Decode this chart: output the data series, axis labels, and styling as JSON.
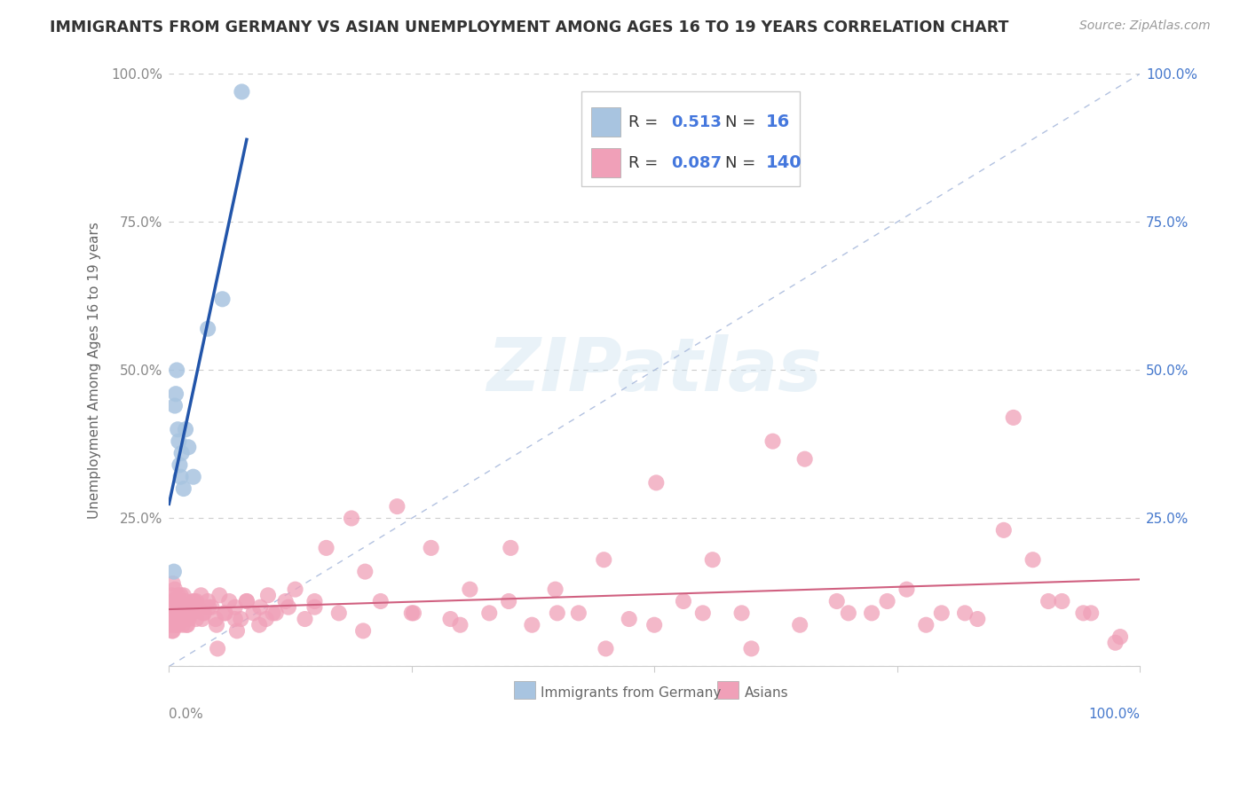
{
  "title": "IMMIGRANTS FROM GERMANY VS ASIAN UNEMPLOYMENT AMONG AGES 16 TO 19 YEARS CORRELATION CHART",
  "source": "Source: ZipAtlas.com",
  "ylabel": "Unemployment Among Ages 16 to 19 years",
  "blue_R": 0.513,
  "blue_N": 16,
  "pink_R": 0.087,
  "pink_N": 140,
  "blue_color": "#a8c4e0",
  "blue_line_color": "#2255aa",
  "pink_color": "#f0a0b8",
  "pink_line_color": "#d06080",
  "diag_color": "#aabbdd",
  "legend_label_blue": "Immigrants from Germany",
  "legend_label_pink": "Asians",
  "watermark": "ZIPatlas",
  "blue_scatter_x": [
    0.005,
    0.006,
    0.007,
    0.008,
    0.009,
    0.01,
    0.011,
    0.012,
    0.013,
    0.015,
    0.017,
    0.02,
    0.025,
    0.04,
    0.055,
    0.075
  ],
  "blue_scatter_y": [
    0.16,
    0.44,
    0.46,
    0.5,
    0.4,
    0.38,
    0.34,
    0.32,
    0.36,
    0.3,
    0.4,
    0.37,
    0.32,
    0.57,
    0.62,
    0.97
  ],
  "pink_scatter_x": [
    0.001,
    0.002,
    0.003,
    0.003,
    0.004,
    0.004,
    0.005,
    0.005,
    0.006,
    0.006,
    0.007,
    0.007,
    0.008,
    0.008,
    0.009,
    0.009,
    0.01,
    0.01,
    0.011,
    0.012,
    0.013,
    0.014,
    0.015,
    0.016,
    0.017,
    0.018,
    0.019,
    0.02,
    0.022,
    0.024,
    0.026,
    0.028,
    0.03,
    0.033,
    0.036,
    0.04,
    0.044,
    0.048,
    0.052,
    0.057,
    0.062,
    0.068,
    0.074,
    0.08,
    0.087,
    0.094,
    0.102,
    0.11,
    0.12,
    0.13,
    0.14,
    0.15,
    0.162,
    0.175,
    0.188,
    0.202,
    0.218,
    0.235,
    0.252,
    0.27,
    0.29,
    0.31,
    0.33,
    0.352,
    0.374,
    0.398,
    0.422,
    0.448,
    0.474,
    0.502,
    0.53,
    0.56,
    0.59,
    0.622,
    0.655,
    0.688,
    0.724,
    0.76,
    0.796,
    0.833,
    0.87,
    0.906,
    0.942,
    0.975,
    0.98,
    0.95,
    0.92,
    0.89,
    0.86,
    0.82,
    0.78,
    0.74,
    0.7,
    0.65,
    0.6,
    0.55,
    0.5,
    0.45,
    0.4,
    0.35,
    0.3,
    0.25,
    0.2,
    0.15,
    0.1,
    0.07,
    0.05,
    0.035,
    0.025,
    0.018,
    0.012,
    0.008,
    0.005,
    0.004,
    0.003,
    0.002,
    0.002,
    0.003,
    0.004,
    0.005,
    0.006,
    0.007,
    0.008,
    0.009,
    0.01,
    0.011,
    0.013,
    0.016,
    0.019,
    0.023,
    0.028,
    0.034,
    0.041,
    0.049,
    0.058,
    0.068,
    0.08,
    0.093,
    0.107,
    0.123
  ],
  "pink_scatter_y": [
    0.1,
    0.08,
    0.12,
    0.06,
    0.09,
    0.14,
    0.11,
    0.07,
    0.13,
    0.09,
    0.1,
    0.08,
    0.11,
    0.07,
    0.12,
    0.09,
    0.1,
    0.08,
    0.11,
    0.09,
    0.1,
    0.07,
    0.12,
    0.08,
    0.11,
    0.09,
    0.1,
    0.08,
    0.1,
    0.09,
    0.11,
    0.08,
    0.1,
    0.12,
    0.09,
    0.11,
    0.1,
    0.08,
    0.12,
    0.09,
    0.11,
    0.1,
    0.08,
    0.11,
    0.09,
    0.1,
    0.12,
    0.09,
    0.11,
    0.13,
    0.08,
    0.11,
    0.2,
    0.09,
    0.25,
    0.16,
    0.11,
    0.27,
    0.09,
    0.2,
    0.08,
    0.13,
    0.09,
    0.2,
    0.07,
    0.13,
    0.09,
    0.18,
    0.08,
    0.31,
    0.11,
    0.18,
    0.09,
    0.38,
    0.35,
    0.11,
    0.09,
    0.13,
    0.09,
    0.08,
    0.42,
    0.11,
    0.09,
    0.04,
    0.05,
    0.09,
    0.11,
    0.18,
    0.23,
    0.09,
    0.07,
    0.11,
    0.09,
    0.07,
    0.03,
    0.09,
    0.07,
    0.03,
    0.09,
    0.11,
    0.07,
    0.09,
    0.06,
    0.1,
    0.08,
    0.06,
    0.03,
    0.09,
    0.11,
    0.07,
    0.12,
    0.09,
    0.08,
    0.11,
    0.09,
    0.07,
    0.1,
    0.08,
    0.06,
    0.09,
    0.11,
    0.08,
    0.1,
    0.07,
    0.09,
    0.11,
    0.08,
    0.1,
    0.07,
    0.09,
    0.11,
    0.08,
    0.1,
    0.07,
    0.09,
    0.08,
    0.11,
    0.07,
    0.09,
    0.1
  ],
  "xlim": [
    0.0,
    1.0
  ],
  "ylim": [
    0.0,
    1.0
  ],
  "yticks": [
    0.0,
    0.25,
    0.5,
    0.75,
    1.0
  ],
  "bg_color": "#ffffff",
  "grid_color": "#cccccc"
}
